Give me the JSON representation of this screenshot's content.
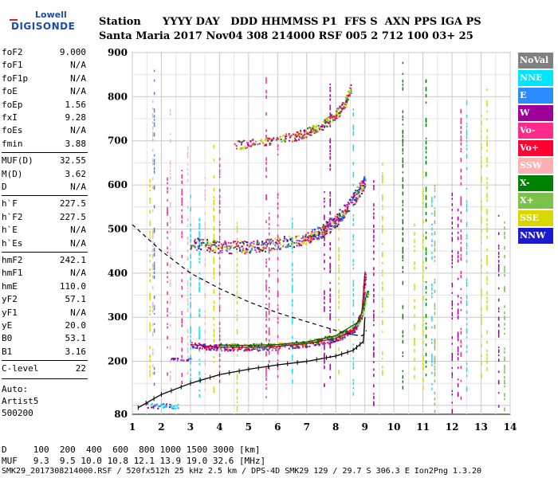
{
  "logo": {
    "top": "Lowell",
    "main": "DIGISONDE"
  },
  "header": {
    "line1": "Station      YYYY DAY   DDD HHMMSS P1  FFS S  AXN PPS IGA PS",
    "line2": "Santa Maria 2017 Nov04 308 214000 RSF 005 2 712 100 03+ 25"
  },
  "params": [
    {
      "k": "foF2",
      "v": "9.000"
    },
    {
      "k": "foF1",
      "v": "N/A"
    },
    {
      "k": "foF1p",
      "v": "N/A"
    },
    {
      "k": "foE",
      "v": "N/A"
    },
    {
      "k": "foEp",
      "v": "1.56"
    },
    {
      "k": "fxI",
      "v": "9.28"
    },
    {
      "k": "foEs",
      "v": "N/A"
    },
    {
      "k": "fmin",
      "v": "3.88"
    },
    {
      "k": "MUF(D)",
      "v": "32.55"
    },
    {
      "k": "M(D)",
      "v": "3.62"
    },
    {
      "k": "D",
      "v": "N/A"
    },
    {
      "k": "h`F",
      "v": "227.5"
    },
    {
      "k": "h`F2",
      "v": "227.5"
    },
    {
      "k": "h`E",
      "v": "N/A"
    },
    {
      "k": "h`Es",
      "v": "N/A"
    },
    {
      "k": "hmF2",
      "v": "242.1"
    },
    {
      "k": "hmF1",
      "v": "N/A"
    },
    {
      "k": "hmE",
      "v": "110.0"
    },
    {
      "k": "yF2",
      "v": "57.1"
    },
    {
      "k": "yF1",
      "v": "N/A"
    },
    {
      "k": "yE",
      "v": "20.0"
    },
    {
      "k": "B0",
      "v": "53.1"
    },
    {
      "k": "B1",
      "v": "3.16"
    },
    {
      "k": "C-level",
      "v": "22"
    }
  ],
  "auto": {
    "l1": "Auto:",
    "l2": "Artist5",
    "l3": "500200"
  },
  "legend": [
    {
      "label": "NoVal",
      "color": "#808080"
    },
    {
      "label": "NNE",
      "color": "#00e5ff"
    },
    {
      "label": "E",
      "color": "#2a8cff"
    },
    {
      "label": "W",
      "color": "#a0009a"
    },
    {
      "label": "Vo-",
      "color": "#ff2a8a"
    },
    {
      "label": "Vo+",
      "color": "#ff0033"
    },
    {
      "label": "SSW",
      "color": "#ffb0b0"
    },
    {
      "label": "X-",
      "color": "#008000"
    },
    {
      "label": "X+",
      "color": "#7cc24a"
    },
    {
      "label": "SSE",
      "color": "#d8d800"
    },
    {
      "label": "NNW",
      "color": "#1a1ad0"
    }
  ],
  "footer": {
    "d_row": "D     100  200  400  600  800 1000 1500 3000 [km]",
    "muf_row": "MUF   9.3  9.5 10.0 10.8 12.1 13.9 19.0 32.6 [MHz]",
    "file_row": "SMK29_2017308214000.RSF / 520fx512h 25 kHz 2.5 km / DPS-4D SMK29 129 / 29.7 S 306.3 E Ion2Png 1.3.20"
  },
  "chart_data": {
    "type": "scatter",
    "x_ticks": [
      "1",
      "2",
      "3",
      "4",
      "5",
      "6",
      "7",
      "8",
      "9",
      "10",
      "11",
      "12",
      "13",
      "14"
    ],
    "y_ticks": [
      "80",
      "200",
      "300",
      "400",
      "500",
      "600",
      "700",
      "800",
      "900"
    ],
    "xlim": [
      1,
      14
    ],
    "ylim": [
      80,
      900
    ],
    "grid": true,
    "profile_curve": {
      "x": [
        1.0,
        2.0,
        3.0,
        4.0,
        5.0,
        6.0,
        7.0,
        8.0,
        8.6,
        8.9,
        9.0,
        9.05
      ],
      "y": [
        510,
        450,
        400,
        365,
        335,
        310,
        290,
        270,
        260,
        258,
        262,
        270
      ]
    },
    "trace_curve": {
      "x": [
        1.2,
        2.0,
        3.0,
        4.0,
        5.0,
        6.0,
        7.0,
        8.0,
        8.6,
        8.95,
        9.0
      ],
      "y": [
        95,
        125,
        150,
        170,
        182,
        192,
        200,
        212,
        225,
        245,
        300
      ]
    },
    "o_trace": {
      "x": [
        3.0,
        4.0,
        5.0,
        6.0,
        7.0,
        8.0,
        8.6,
        8.9,
        9.0
      ],
      "y": [
        238,
        232,
        232,
        234,
        240,
        252,
        270,
        310,
        400
      ]
    },
    "x_trace": {
      "x": [
        4.0,
        5.0,
        6.0,
        7.0,
        8.0,
        8.8,
        9.1
      ],
      "y": [
        237,
        236,
        238,
        244,
        258,
        290,
        360
      ]
    },
    "multihop2": {
      "x": [
        3.0,
        4.0,
        5.0,
        6.0,
        7.0,
        7.5,
        8.0,
        8.5,
        9.0
      ],
      "y": [
        470,
        460,
        460,
        468,
        480,
        495,
        520,
        560,
        610
      ]
    },
    "multihop3": {
      "x": [
        4.5,
        5.5,
        6.5,
        7.0,
        7.5,
        8.0,
        8.3,
        8.5
      ],
      "y": [
        690,
        700,
        710,
        720,
        735,
        760,
        785,
        820
      ]
    }
  }
}
